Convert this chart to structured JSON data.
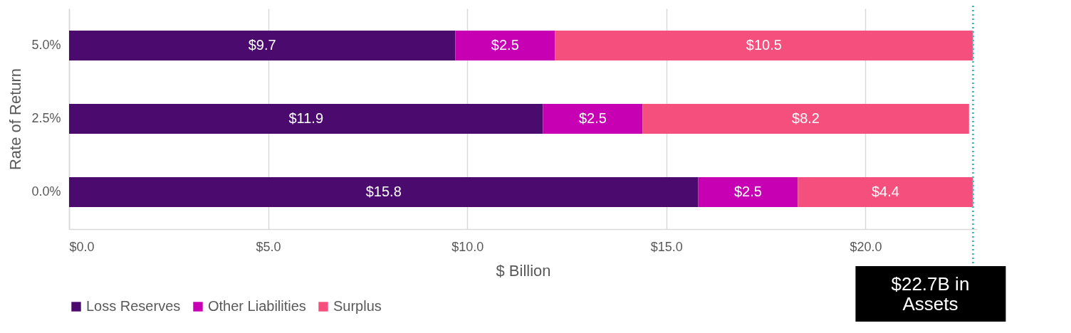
{
  "chart_data": {
    "type": "bar",
    "orientation": "horizontal",
    "stacked": true,
    "xlabel": "$ Billion",
    "ylabel": "Rate of Return",
    "categories": [
      "5.0%",
      "2.5%",
      "0.0%"
    ],
    "series": [
      {
        "name": "Loss Reserves",
        "color": "#4b0a6e",
        "values": [
          9.7,
          11.9,
          15.8
        ],
        "value_labels": [
          "$9.7",
          "$11.9",
          "$15.8"
        ]
      },
      {
        "name": "Other Liabilities",
        "color": "#c800b4",
        "values": [
          2.5,
          2.5,
          2.5
        ],
        "value_labels": [
          "$2.5",
          "$2.5",
          "$2.5"
        ]
      },
      {
        "name": "Surplus",
        "color": "#f5507d",
        "values": [
          10.5,
          8.2,
          4.4
        ],
        "value_labels": [
          "$10.5",
          "$8.2",
          "$4.4"
        ]
      }
    ],
    "xlim": [
      0,
      22.8
    ],
    "xticks": [
      {
        "value": 0,
        "label": "$0.0"
      },
      {
        "value": 5,
        "label": "$5.0"
      },
      {
        "value": 10,
        "label": "$10.0"
      },
      {
        "value": 15,
        "label": "$15.0"
      },
      {
        "value": 20,
        "label": "$20.0"
      }
    ],
    "ref_lines": [
      {
        "axis": "x",
        "value": 22.7,
        "label": "$22.7B in Assets",
        "color": "#2ec4b6",
        "line_style": "dotted"
      }
    ],
    "grid": "x",
    "legend": "bottom"
  }
}
